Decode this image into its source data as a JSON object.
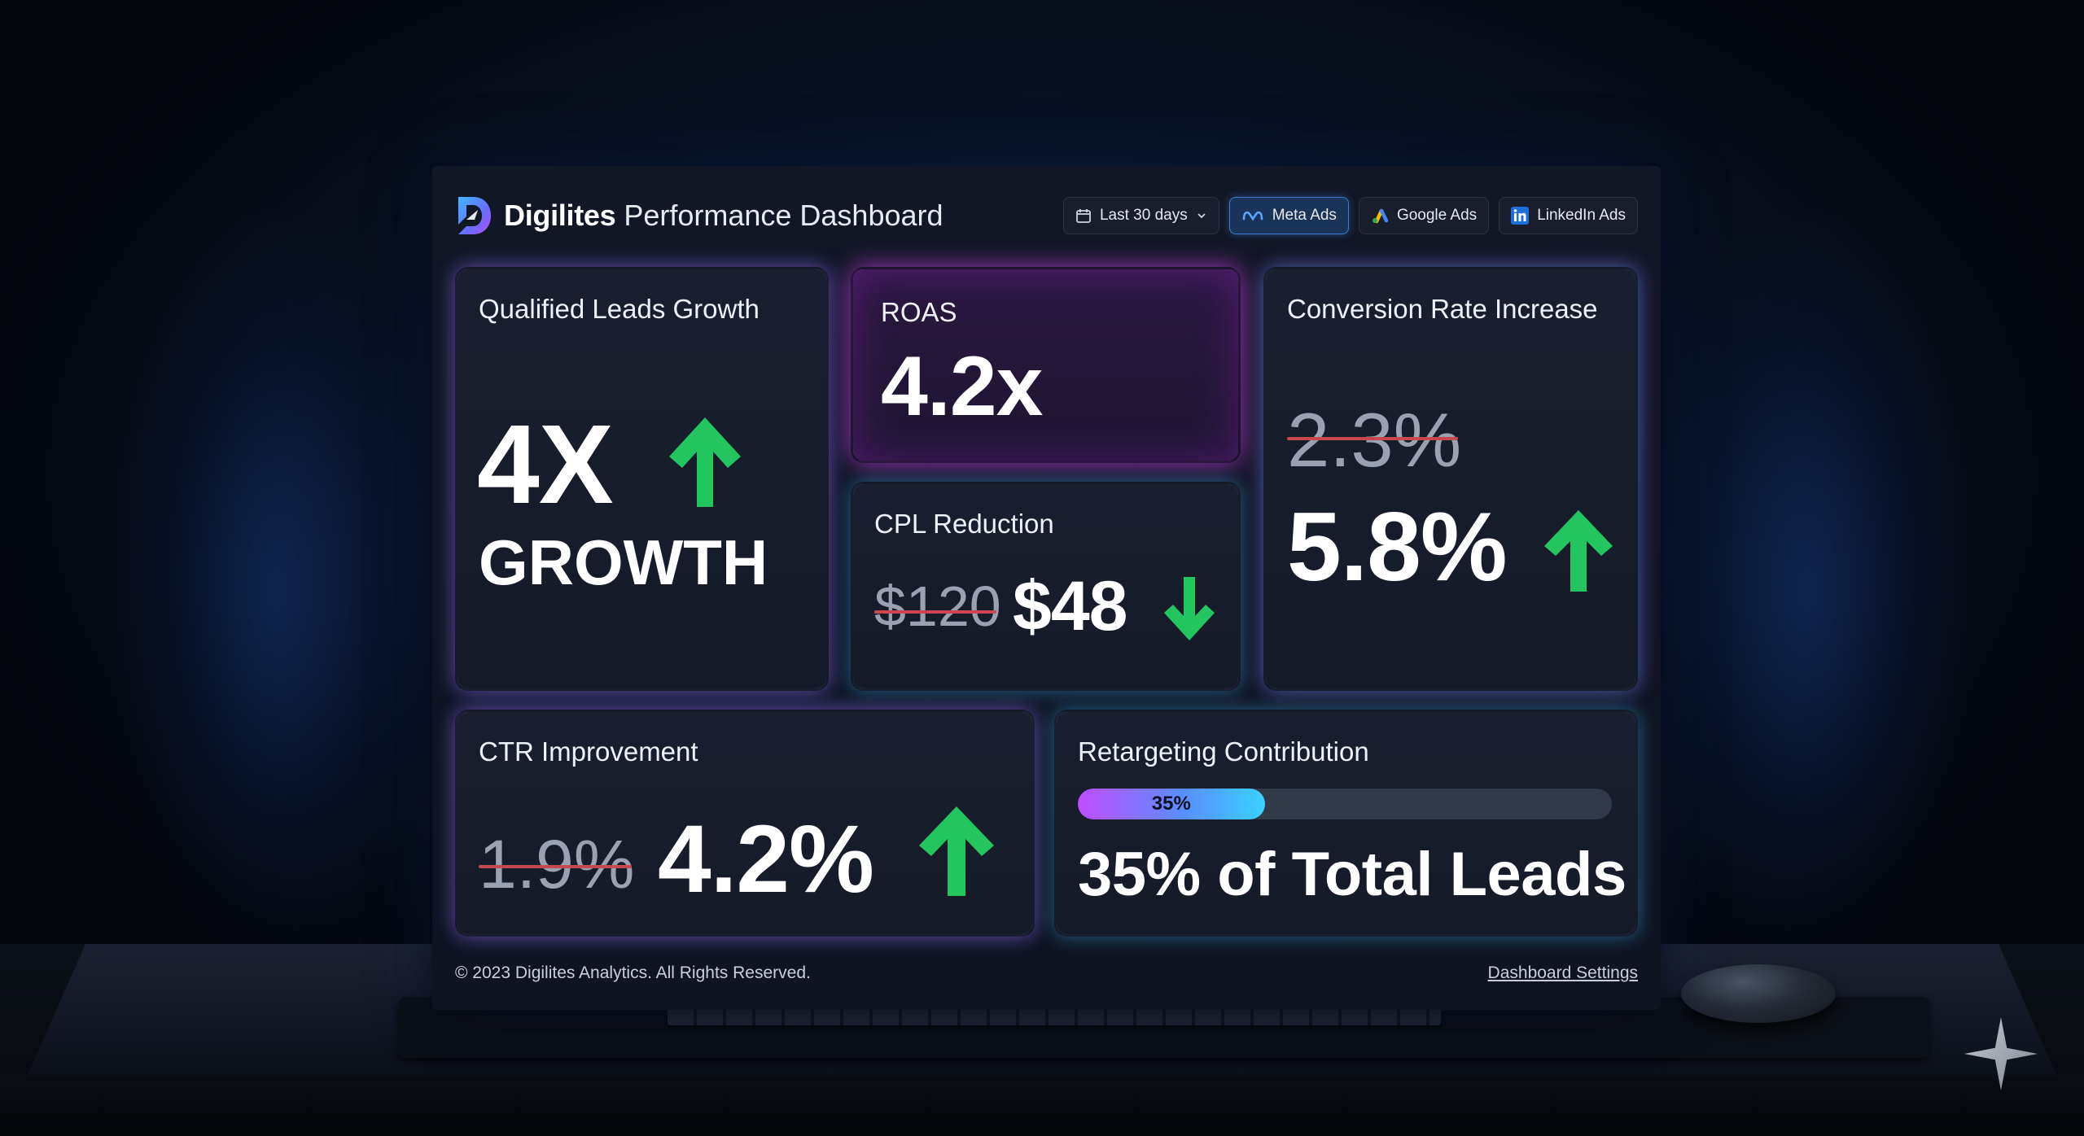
{
  "app": {
    "brand_name": "Digilites",
    "title": "Performance Dashboard"
  },
  "filters": {
    "date_range": "Last 30 days",
    "channels": [
      {
        "label": "Meta Ads",
        "active": true
      },
      {
        "label": "Google Ads",
        "active": false
      },
      {
        "label": "LinkedIn Ads",
        "active": false
      }
    ]
  },
  "cards": {
    "leads": {
      "label": "Qualified Leads Growth",
      "value": "4X",
      "sub": "GROWTH",
      "trend": "up"
    },
    "roas": {
      "label": "ROAS",
      "value": "4.2x"
    },
    "cpl": {
      "label": "CPL Reduction",
      "old_value": "$120",
      "value": "$48",
      "trend": "down"
    },
    "conversion": {
      "label": "Conversion Rate Increase",
      "old_value": "2.3%",
      "value": "5.8%",
      "trend": "up"
    },
    "ctr": {
      "label": "CTR Improvement",
      "old_value": "1.9%",
      "value": "4.2%",
      "trend": "up"
    },
    "retargeting": {
      "label": "Retargeting Contribution",
      "progress_label": "35%",
      "progress_fraction": 0.35,
      "value": "35% of Total Leads"
    }
  },
  "footer": {
    "copyright": "© 2023 Digilites Analytics. All Rights Reserved.",
    "settings_link": "Dashboard Settings"
  },
  "colors": {
    "trend_up": "#22c55e",
    "trend_down": "#22c55e",
    "strike": "#c9484f"
  }
}
